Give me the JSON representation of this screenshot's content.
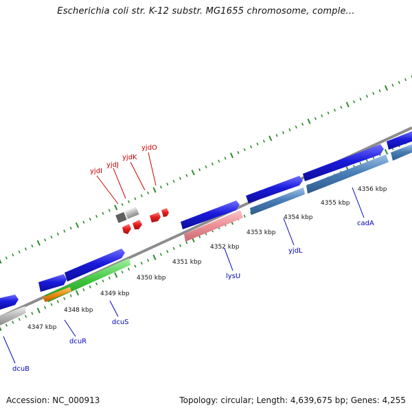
{
  "title": "Escherichia coli str. K-12 substr. MG1655 chromosome, comple...",
  "footer": {
    "accession": "Accession: NC_000913",
    "summary": "Topology: circular; Length: 4,639,675 bp; Genes: 4,255"
  },
  "colors": {
    "backbone": "#8c8c8c",
    "ticks": "#2a8a2a",
    "gene_blue": "#1a1adb",
    "gene_steelblue": "#4a7fb8",
    "gene_pink": "#ec8f96",
    "gene_green": "#3ec63e",
    "gene_orange": "#ee8a10",
    "gene_gray": "#b8b8b8",
    "gene_red": "#e51d1d",
    "label_red": "#cc0000",
    "label_blue": "#0000bb"
  },
  "kbp_labels": [
    "4347 kbp",
    "4348 kbp",
    "4349 kbp",
    "4350 kbp",
    "4351 kbp",
    "4352 kbp",
    "4353 kbp",
    "4354 kbp",
    "4355 kbp",
    "4356 kbp"
  ],
  "gene_labels_blue": [
    "dcuB",
    "dcuR",
    "dcuS",
    "lysU",
    "yjdL",
    "cadA"
  ],
  "gene_labels_red": [
    "yjdI",
    "yjdJ",
    "yjdK",
    "yjdO"
  ]
}
